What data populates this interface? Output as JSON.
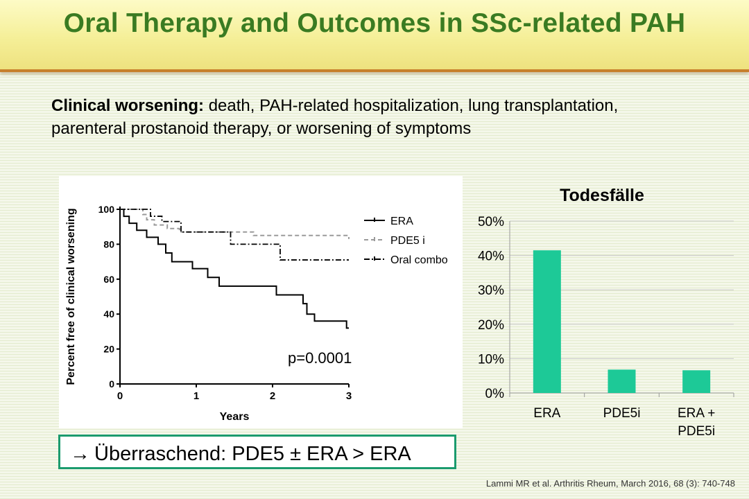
{
  "slide": {
    "title": "Oral Therapy and Outcomes in SSc-related PAH",
    "definition_label": "Clinical worsening:",
    "definition_text": " death, PAH-related hospitalization, lung transplantation, parenteral prostanoid therapy, or worsening of symptoms",
    "callout_arrow": "→",
    "callout_text": "Überraschend: PDE5 ± ERA > ERA",
    "citation": "Lammi MR et al. Arthritis Rheum, March 2016, 68 (3): 740-748"
  },
  "colors": {
    "title_green": "#3a7b22",
    "bar_teal": "#1dc997",
    "callout_border": "#1b9b6e"
  },
  "chart_data": [
    {
      "type": "line",
      "title": "",
      "xlabel": "Years",
      "ylabel": "Percent free of clinical worsening",
      "xlim": [
        0,
        3
      ],
      "ylim": [
        0,
        100
      ],
      "x_ticks": [
        "0",
        "1",
        "2",
        "3"
      ],
      "y_ticks": [
        "0",
        "20",
        "40",
        "60",
        "80",
        "100"
      ],
      "step": true,
      "legend_position": "top-right",
      "annotation": "p=0.0001",
      "series": [
        {
          "name": "ERA",
          "style": "solid",
          "points": [
            [
              0,
              100
            ],
            [
              0.05,
              96
            ],
            [
              0.12,
              92
            ],
            [
              0.22,
              88
            ],
            [
              0.35,
              84
            ],
            [
              0.5,
              80
            ],
            [
              0.6,
              75
            ],
            [
              0.68,
              70
            ],
            [
              0.95,
              66
            ],
            [
              1.15,
              61
            ],
            [
              1.3,
              56
            ],
            [
              2.05,
              51
            ],
            [
              2.4,
              46
            ],
            [
              2.45,
              40
            ],
            [
              2.55,
              36
            ],
            [
              2.97,
              36
            ],
            [
              2.97,
              32
            ],
            [
              3.0,
              32
            ]
          ]
        },
        {
          "name": "PDE5 i",
          "style": "dash",
          "points": [
            [
              0,
              100
            ],
            [
              0.3,
              97
            ],
            [
              0.35,
              94
            ],
            [
              0.45,
              91
            ],
            [
              0.62,
              89
            ],
            [
              0.78,
              87
            ],
            [
              1.7,
              87
            ],
            [
              1.75,
              85
            ],
            [
              3.0,
              85
            ],
            [
              3.0,
              83
            ]
          ]
        },
        {
          "name": "Oral combo",
          "style": "dashdot",
          "points": [
            [
              0,
              100
            ],
            [
              0.4,
              96
            ],
            [
              0.55,
              93
            ],
            [
              0.8,
              87
            ],
            [
              1.4,
              87
            ],
            [
              1.45,
              80
            ],
            [
              2.0,
              80
            ],
            [
              2.1,
              71
            ],
            [
              3.0,
              71
            ]
          ]
        }
      ]
    },
    {
      "type": "bar",
      "title": "Todesfälle",
      "categories": [
        "ERA",
        "PDE5i",
        "ERA + PDE5i"
      ],
      "values": [
        41.5,
        6.8,
        6.6
      ],
      "y_ticks": [
        "0%",
        "10%",
        "20%",
        "30%",
        "40%",
        "50%"
      ],
      "ylim": [
        0,
        50
      ],
      "grid": true
    }
  ]
}
